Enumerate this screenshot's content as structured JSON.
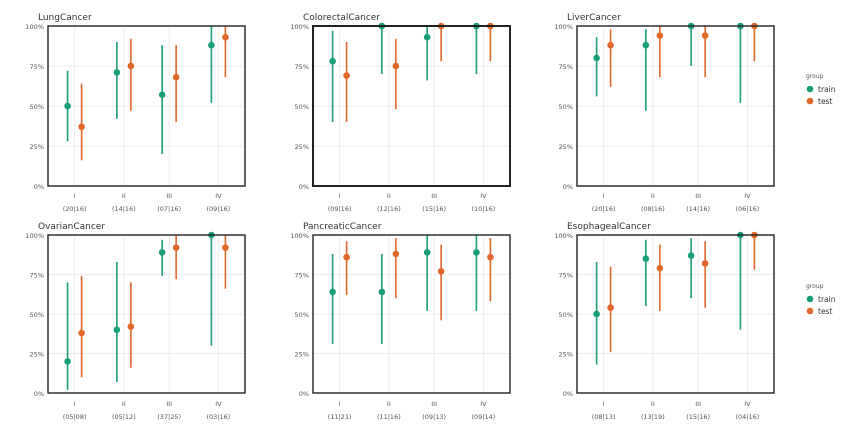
{
  "colors": {
    "train": "#1a9e77",
    "test": "#e0672a",
    "grid": "#ececec",
    "axis_text": "#555555",
    "title_text": "#333333"
  },
  "legend": {
    "title": "group",
    "items": [
      {
        "label": "train",
        "color": "#1a9e77"
      },
      {
        "label": "test",
        "color": "#e0672a"
      }
    ],
    "placement": "right"
  },
  "chart_data": [
    {
      "type": "errorbar",
      "title": "LungCancer",
      "categories": [
        "I",
        "II",
        "III",
        "IV"
      ],
      "tick_labels": [
        "I\n(20|16)",
        "II\n(14|16)",
        "III\n(07|16)",
        "IV\n(09|16)"
      ],
      "counts": [
        "(20|16)",
        "(14|16)",
        "(07|16)",
        "(09|16)"
      ],
      "yticks": [
        "0%",
        "25%",
        "50%",
        "75%",
        "100%"
      ],
      "ylim": [
        0,
        100
      ],
      "grid": true,
      "series": [
        {
          "name": "train",
          "values": [
            50,
            71,
            57,
            88
          ],
          "lower": [
            28,
            42,
            20,
            52
          ],
          "upper": [
            72,
            90,
            88,
            100
          ]
        },
        {
          "name": "test",
          "values": [
            37,
            75,
            68,
            93
          ],
          "lower": [
            16,
            47,
            40,
            68
          ],
          "upper": [
            64,
            92,
            88,
            100
          ]
        }
      ]
    },
    {
      "type": "errorbar",
      "title": "ColorectalCancer",
      "categories": [
        "I",
        "II",
        "III",
        "IV"
      ],
      "tick_labels": [
        "I\n(09|16)",
        "II\n(12|16)",
        "III\n(15|16)",
        "IV\n(10|16)"
      ],
      "counts": [
        "(09|16)",
        "(12|16)",
        "(15|16)",
        "(10|16)"
      ],
      "yticks": [
        "0%",
        "25%",
        "50%",
        "75%",
        "100%"
      ],
      "ylim": [
        0,
        100
      ],
      "grid": true,
      "series": [
        {
          "name": "train",
          "values": [
            78,
            100,
            93,
            100
          ],
          "lower": [
            40,
            70,
            66,
            70
          ],
          "upper": [
            97,
            100,
            100,
            100
          ]
        },
        {
          "name": "test",
          "values": [
            69,
            75,
            100,
            100
          ],
          "lower": [
            40,
            48,
            78,
            78
          ],
          "upper": [
            90,
            92,
            100,
            100
          ]
        }
      ]
    },
    {
      "type": "errorbar",
      "title": "LiverCancer",
      "categories": [
        "I",
        "II",
        "III",
        "IV"
      ],
      "tick_labels": [
        "I\n(20|16)",
        "II\n(08|16)",
        "III\n(14|16)",
        "IV\n(06|16)"
      ],
      "counts": [
        "(20|16)",
        "(08|16)",
        "(14|16)",
        "(06|16)"
      ],
      "yticks": [
        "0%",
        "25%",
        "50%",
        "75%",
        "100%"
      ],
      "ylim": [
        0,
        100
      ],
      "grid": true,
      "series": [
        {
          "name": "train",
          "values": [
            80,
            88,
            100,
            100
          ],
          "lower": [
            56,
            47,
            75,
            52
          ],
          "upper": [
            93,
            98,
            100,
            100
          ]
        },
        {
          "name": "test",
          "values": [
            88,
            94,
            94,
            100
          ],
          "lower": [
            62,
            68,
            68,
            78
          ],
          "upper": [
            98,
            100,
            100,
            100
          ]
        }
      ]
    },
    {
      "type": "errorbar",
      "title": "OvarianCancer",
      "categories": [
        "I",
        "II",
        "III",
        "IV"
      ],
      "tick_labels": [
        "I\n(05|08)",
        "II\n(05|12)",
        "III\n(37|25)",
        "IV\n(03|16)"
      ],
      "counts": [
        "(05|08)",
        "(05|12)",
        "(37|25)",
        "(03|16)"
      ],
      "yticks": [
        "0%",
        "25%",
        "50%",
        "75%",
        "100%"
      ],
      "ylim": [
        0,
        100
      ],
      "grid": true,
      "series": [
        {
          "name": "train",
          "values": [
            20,
            40,
            89,
            100
          ],
          "lower": [
            2,
            7,
            74,
            30
          ],
          "upper": [
            70,
            83,
            97,
            100
          ]
        },
        {
          "name": "test",
          "values": [
            38,
            42,
            92,
            92
          ],
          "lower": [
            10,
            16,
            72,
            66
          ],
          "upper": [
            74,
            70,
            100,
            100
          ]
        }
      ]
    },
    {
      "type": "errorbar",
      "title": "PancreaticCancer",
      "categories": [
        "I",
        "II",
        "III",
        "IV"
      ],
      "tick_labels": [
        "I\n(11|21)",
        "II\n(11|16)",
        "III\n(09|13)",
        "IV\n(09|14)"
      ],
      "counts": [
        "(11|21)",
        "(11|16)",
        "(09|13)",
        "(09|14)"
      ],
      "yticks": [
        "0%",
        "25%",
        "50%",
        "75%",
        "100%"
      ],
      "ylim": [
        0,
        100
      ],
      "grid": true,
      "series": [
        {
          "name": "train",
          "values": [
            64,
            64,
            89,
            89
          ],
          "lower": [
            31,
            31,
            52,
            52
          ],
          "upper": [
            88,
            88,
            100,
            100
          ]
        },
        {
          "name": "test",
          "values": [
            86,
            88,
            77,
            86
          ],
          "lower": [
            62,
            60,
            46,
            58
          ],
          "upper": [
            96,
            98,
            94,
            98
          ]
        }
      ]
    },
    {
      "type": "errorbar",
      "title": "EsophagealCancer",
      "categories": [
        "I",
        "II",
        "III",
        "IV"
      ],
      "tick_labels": [
        "I\n(08|13)",
        "II\n(13|19)",
        "III\n(15|16)",
        "IV\n(04|16)"
      ],
      "counts": [
        "(08|13)",
        "(13|19)",
        "(15|16)",
        "(04|16)"
      ],
      "yticks": [
        "0%",
        "25%",
        "50%",
        "75%",
        "100%"
      ],
      "ylim": [
        0,
        100
      ],
      "grid": true,
      "series": [
        {
          "name": "train",
          "values": [
            50,
            85,
            87,
            100
          ],
          "lower": [
            18,
            55,
            60,
            40
          ],
          "upper": [
            83,
            97,
            98,
            100
          ]
        },
        {
          "name": "test",
          "values": [
            54,
            79,
            82,
            100
          ],
          "lower": [
            26,
            52,
            54,
            78
          ],
          "upper": [
            80,
            94,
            96,
            100
          ]
        }
      ]
    }
  ]
}
